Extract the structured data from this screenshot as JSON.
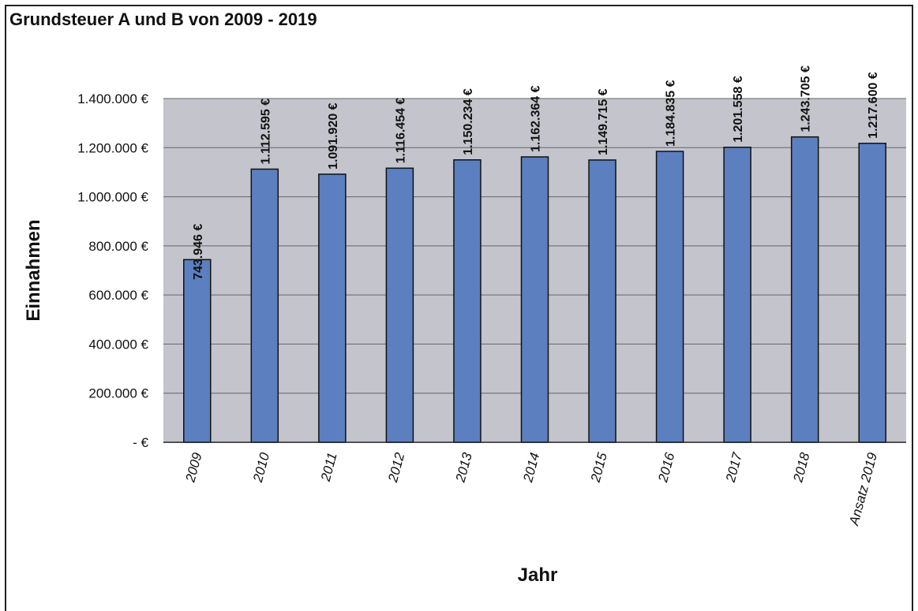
{
  "chart_data": {
    "type": "bar",
    "title": "Grundsteuer A und B von 2009 - 2019",
    "xlabel": "Jahr",
    "ylabel": "Einnahmen",
    "categories": [
      "2009",
      "2010",
      "2011",
      "2012",
      "2013",
      "2014",
      "2015",
      "2016",
      "2017",
      "2018",
      "Ansatz 2019"
    ],
    "values": [
      743946,
      1112595,
      1091920,
      1116454,
      1150234,
      1162364,
      1149715,
      1184835,
      1201558,
      1243705,
      1217600
    ],
    "data_labels": [
      "743.946 €",
      "1.112.595 €",
      "1.091.920 €",
      "1.116.454 €",
      "1.150.234 €",
      "1.162.364 €",
      "1.149.715 €",
      "1.184.835 €",
      "1.201.558 €",
      "1.243.705 €",
      "1.217.600 €"
    ],
    "ylim": [
      0,
      1400000
    ],
    "y_ticks": [
      0,
      200000,
      400000,
      600000,
      800000,
      1000000,
      1200000,
      1400000
    ],
    "y_tick_labels": [
      "-  €",
      "200.000 €",
      "400.000 €",
      "600.000 €",
      "800.000 €",
      "1.000.000 €",
      "1.200.000 €",
      "1.400.000 €"
    ],
    "grid": true,
    "legend": "none",
    "colors": {
      "bar_fill": "#5b7fbf",
      "bar_stroke": "#111111",
      "plot_bg": "#c4c4cc",
      "gridline": "#666666"
    }
  }
}
